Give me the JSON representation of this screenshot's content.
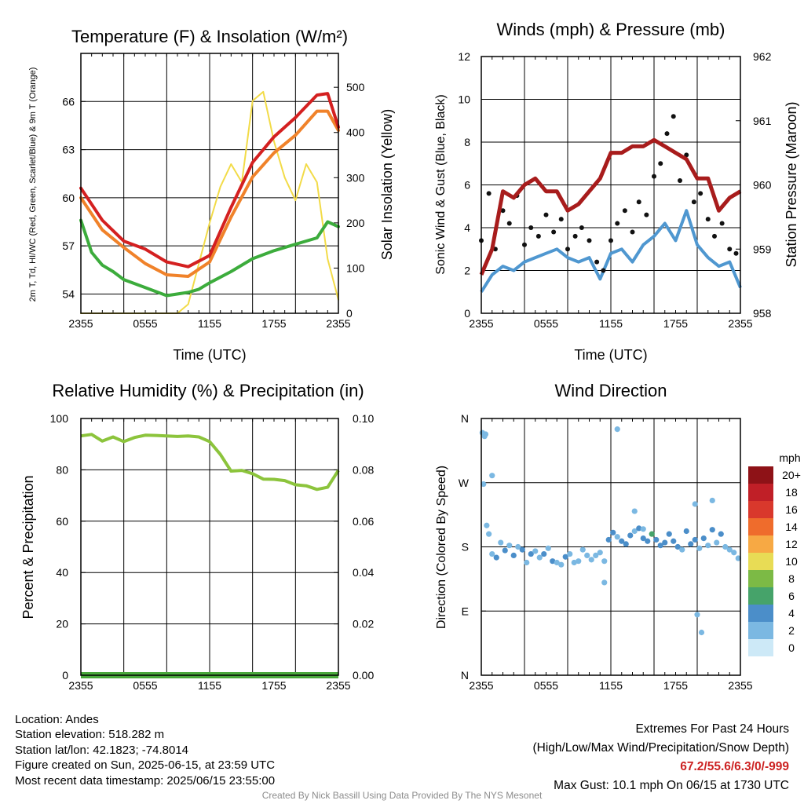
{
  "chart_data": [
    {
      "type": "line",
      "title": "Temperature (F) & Insolation (W/m²)",
      "xlabel": "Time (UTC)",
      "ylabel": "2m T, Td, HI/WC (Red, Green, Scarlet/Blue) & 9m T (Orange)",
      "ylabel_right": "Solar Insolation (Yellow)",
      "x_ticks": [
        "2355",
        "0555",
        "1155",
        "1755",
        "2355"
      ],
      "y_ticks": [
        54,
        57,
        60,
        63,
        66
      ],
      "y2_ticks": [
        0,
        100,
        200,
        300,
        400,
        500
      ],
      "ylim": [
        52.8,
        69.0
      ],
      "y2lim": [
        0,
        575
      ],
      "grid": true,
      "series": [
        {
          "name": "2m T",
          "color": "#d42020",
          "axis": "left",
          "x": [
            0,
            2,
            4,
            6,
            8,
            10,
            12,
            14,
            16,
            18,
            20,
            22,
            23,
            24
          ],
          "values": [
            60.6,
            58.6,
            57.3,
            56.8,
            56.0,
            55.7,
            56.4,
            59.4,
            62.2,
            63.8,
            65.0,
            66.4,
            66.5,
            64.4
          ]
        },
        {
          "name": "Td",
          "color": "#3cac3c",
          "axis": "left",
          "x": [
            0,
            1,
            2,
            3,
            4,
            6,
            8,
            10,
            11,
            12,
            14,
            16,
            18,
            20,
            22,
            23,
            24
          ],
          "values": [
            58.6,
            56.6,
            55.8,
            55.4,
            54.9,
            54.4,
            53.9,
            54.1,
            54.3,
            54.7,
            55.4,
            56.2,
            56.7,
            57.1,
            57.5,
            58.5,
            58.2
          ]
        },
        {
          "name": "9m T",
          "color": "#f0822a",
          "axis": "left",
          "x": [
            0,
            2,
            4,
            6,
            8,
            10,
            12,
            14,
            16,
            18,
            20,
            22,
            23,
            24
          ],
          "values": [
            60.0,
            58.0,
            56.9,
            55.9,
            55.2,
            55.1,
            56.0,
            58.8,
            61.3,
            62.8,
            63.9,
            65.4,
            65.4,
            64.2
          ]
        },
        {
          "name": "Solar Insolation",
          "color": "#f2db48",
          "axis": "right",
          "x": [
            0,
            2,
            4,
            6,
            8,
            9,
            10,
            11,
            12,
            13,
            14,
            15,
            16,
            17,
            18,
            19,
            20,
            21,
            22,
            23,
            24
          ],
          "values": [
            0,
            0,
            0,
            0,
            0,
            0,
            20,
            110,
            200,
            280,
            330,
            290,
            470,
            490,
            380,
            300,
            250,
            330,
            290,
            120,
            30
          ]
        }
      ]
    },
    {
      "type": "scatter",
      "title": "Winds (mph) & Pressure (mb)",
      "xlabel": "Time (UTC)",
      "ylabel": "Sonic Wind & Gust (Blue, Black)",
      "ylabel_right": "Station Pressure (Maroon)",
      "x_ticks": [
        "2355",
        "0555",
        "1155",
        "1755",
        "2355"
      ],
      "y_ticks": [
        0,
        2,
        4,
        6,
        8,
        10,
        12
      ],
      "y2_ticks": [
        958,
        959,
        960,
        961,
        962
      ],
      "ylim": [
        0,
        12
      ],
      "y2lim": [
        958,
        962
      ],
      "grid": true,
      "series": [
        {
          "name": "Sonic Wind",
          "color": "#4f97d0",
          "axis": "left",
          "x": [
            0,
            1,
            2,
            3,
            4,
            5,
            6,
            7,
            8,
            9,
            10,
            11,
            12,
            13,
            14,
            15,
            16,
            17,
            18,
            19,
            20,
            21,
            22,
            23,
            24
          ],
          "values": [
            1.0,
            1.8,
            2.2,
            2.0,
            2.4,
            2.6,
            2.8,
            3.0,
            2.6,
            2.4,
            2.6,
            1.6,
            2.8,
            3.0,
            2.4,
            3.2,
            3.6,
            4.2,
            3.4,
            4.8,
            3.2,
            2.6,
            2.2,
            2.4,
            1.2
          ]
        },
        {
          "name": "Gust",
          "color": "#111111",
          "axis": "left",
          "x": [
            0,
            0.7,
            1.3,
            2,
            2.6,
            3.3,
            4,
            4.6,
            5.3,
            6,
            6.7,
            7.4,
            8,
            8.7,
            9.3,
            10,
            10.7,
            11.3,
            12,
            12.6,
            13.3,
            14,
            14.6,
            15.3,
            16,
            16.6,
            17.2,
            17.8,
            18.4,
            19,
            19.7,
            20.3,
            21,
            21.6,
            22.3,
            23,
            23.6
          ],
          "values": [
            3.4,
            5.6,
            3.0,
            4.8,
            4.2,
            5.5,
            3.2,
            4.0,
            3.6,
            4.6,
            3.8,
            4.4,
            3.0,
            3.6,
            4.0,
            3.4,
            2.4,
            2.0,
            3.4,
            4.2,
            4.8,
            3.8,
            5.2,
            4.6,
            6.4,
            7.0,
            8.4,
            9.2,
            6.2,
            7.4,
            5.2,
            5.6,
            4.4,
            3.6,
            4.2,
            3.0,
            2.8
          ]
        },
        {
          "name": "Station Pressure",
          "color": "#a81c1c",
          "axis": "right",
          "x": [
            0,
            1,
            2,
            3,
            4,
            5,
            6,
            7,
            8,
            9,
            10,
            11,
            12,
            13,
            14,
            15,
            16,
            17,
            18,
            19,
            20,
            21,
            22,
            23,
            24
          ],
          "values": [
            958.6,
            959.0,
            959.9,
            959.8,
            960.0,
            960.1,
            959.9,
            959.9,
            959.6,
            959.7,
            959.9,
            960.1,
            960.5,
            960.5,
            960.6,
            960.6,
            960.7,
            960.6,
            960.5,
            960.4,
            960.1,
            960.1,
            959.6,
            959.8,
            959.9
          ]
        }
      ]
    },
    {
      "type": "line",
      "title": "Relative Humidity (%) & Precipitation (in)",
      "ylabel": "Percent & Precipitation",
      "x_ticks": [
        "2355",
        "0555",
        "1155",
        "1755",
        "2355"
      ],
      "y_ticks": [
        0,
        20,
        40,
        60,
        80,
        100
      ],
      "y2_ticks": [
        "0.00",
        "0.02",
        "0.04",
        "0.06",
        "0.08",
        "0.10"
      ],
      "ylim": [
        0,
        100
      ],
      "y2lim": [
        0,
        0.1
      ],
      "grid": true,
      "series": [
        {
          "name": "Relative Humidity",
          "color": "#8cc43c",
          "axis": "left",
          "x": [
            0,
            1,
            2,
            3,
            4,
            5,
            6,
            7,
            8,
            9,
            10,
            11,
            12,
            13,
            14,
            15,
            16,
            17,
            18,
            19,
            20,
            21,
            22,
            23,
            24
          ],
          "values": [
            93.2,
            93.8,
            91.2,
            92.8,
            91.0,
            92.6,
            93.5,
            93.4,
            93.2,
            93.0,
            93.2,
            92.8,
            91.0,
            86.0,
            79.5,
            79.8,
            78.5,
            76.4,
            76.3,
            75.8,
            74.2,
            73.8,
            72.4,
            73.2,
            79.8
          ]
        },
        {
          "name": "Precipitation",
          "color": "#49a83b",
          "axis": "right",
          "x": [
            0,
            24
          ],
          "values": [
            0.0,
            0.0
          ]
        }
      ]
    },
    {
      "type": "scatter",
      "title": "Wind Direction",
      "ylabel": "Direction (Colored By Speed)",
      "x_ticks": [
        "2355",
        "0555",
        "1155",
        "1755",
        "2355"
      ],
      "y_ticks": [
        "N",
        "E",
        "S",
        "W",
        "N"
      ],
      "ylim": [
        0,
        360
      ],
      "colorbar_title": "mph",
      "colorbar_labels": [
        "0",
        "2",
        "4",
        "6",
        "8",
        "10",
        "12",
        "14",
        "16",
        "18",
        "20+"
      ],
      "colorbar_colors": [
        "#cde9f7",
        "#7bb8e2",
        "#4b8ec9",
        "#46a36a",
        "#7cba45",
        "#e8dc55",
        "#f7a944",
        "#ef6c2c",
        "#d9382c",
        "#c01f27",
        "#8e1217"
      ],
      "grid": true,
      "series": [
        {
          "name": "Wind Direction",
          "x": [
            0.1,
            0.3,
            0.5,
            0.7,
            1.0,
            1.4,
            1.8,
            2.2,
            2.6,
            3.0,
            3.4,
            3.8,
            4.2,
            4.6,
            5.0,
            5.4,
            5.8,
            6.2,
            6.6,
            7.0,
            7.4,
            7.8,
            8.2,
            8.6,
            9.0,
            9.4,
            9.8,
            10.2,
            10.6,
            11.0,
            11.4,
            11.8,
            12.2,
            12.6,
            13.0,
            13.4,
            13.8,
            14.2,
            14.6,
            15.0,
            15.4,
            15.8,
            16.2,
            16.6,
            17.0,
            17.4,
            17.8,
            18.2,
            18.6,
            19.0,
            19.4,
            19.8,
            20.2,
            20.6,
            21.0,
            21.4,
            21.8,
            22.2,
            22.6,
            23.0,
            23.4,
            23.8,
            12.6,
            0.4,
            1.0,
            0.2,
            11.4,
            14.2,
            15.0,
            20.0,
            20.4,
            21.4,
            19.8
          ],
          "values": [
            340,
            335,
            210,
            198,
            170,
            165,
            186,
            175,
            182,
            168,
            180,
            176,
            158,
            170,
            174,
            165,
            170,
            178,
            160,
            158,
            155,
            166,
            170,
            158,
            160,
            176,
            168,
            162,
            168,
            172,
            160,
            190,
            200,
            194,
            188,
            184,
            196,
            202,
            206,
            192,
            188,
            198,
            190,
            182,
            186,
            198,
            188,
            180,
            176,
            202,
            184,
            190,
            178,
            192,
            182,
            204,
            186,
            198,
            180,
            176,
            172,
            164,
            345,
            338,
            280,
            268,
            130,
            230,
            205,
            85,
            60,
            245,
            240
          ],
          "speeds": [
            1,
            1,
            1,
            2,
            2,
            3,
            2,
            3,
            2,
            3,
            2,
            3,
            2,
            3,
            2,
            2,
            3,
            2,
            3,
            2,
            2,
            3,
            2,
            1,
            2,
            1,
            2,
            1,
            1,
            2,
            1,
            3,
            3,
            2,
            3,
            4,
            3,
            2,
            3,
            4,
            3,
            6,
            4,
            3,
            4,
            3,
            4,
            3,
            2,
            3,
            4,
            3,
            2,
            3,
            2,
            3,
            2,
            3,
            1,
            2,
            1,
            2,
            2,
            1,
            2,
            1,
            1,
            2,
            2,
            1,
            1,
            1,
            1
          ]
        }
      ]
    }
  ],
  "info": {
    "location": "Location: Andes",
    "elevation": "Station elevation: 518.282 m",
    "latlon": "Station lat/lon: 42.1823; -74.8014",
    "created": "Figure created on Sun, 2025-06-15, at 23:59 UTC",
    "recent": "Most recent data timestamp: 2025/06/15 23:55:00"
  },
  "extremes": {
    "title": "Extremes For Past 24 Hours",
    "subtitle": "(High/Low/Max Wind/Precipitation/Snow Depth)",
    "values": "67.2/55.6/6.3/0/-999",
    "max_gust": "Max Gust: 10.1 mph On 06/15 at 1730 UTC"
  },
  "credit": "Created By Nick Bassill Using Data Provided By The NYS Mesonet"
}
